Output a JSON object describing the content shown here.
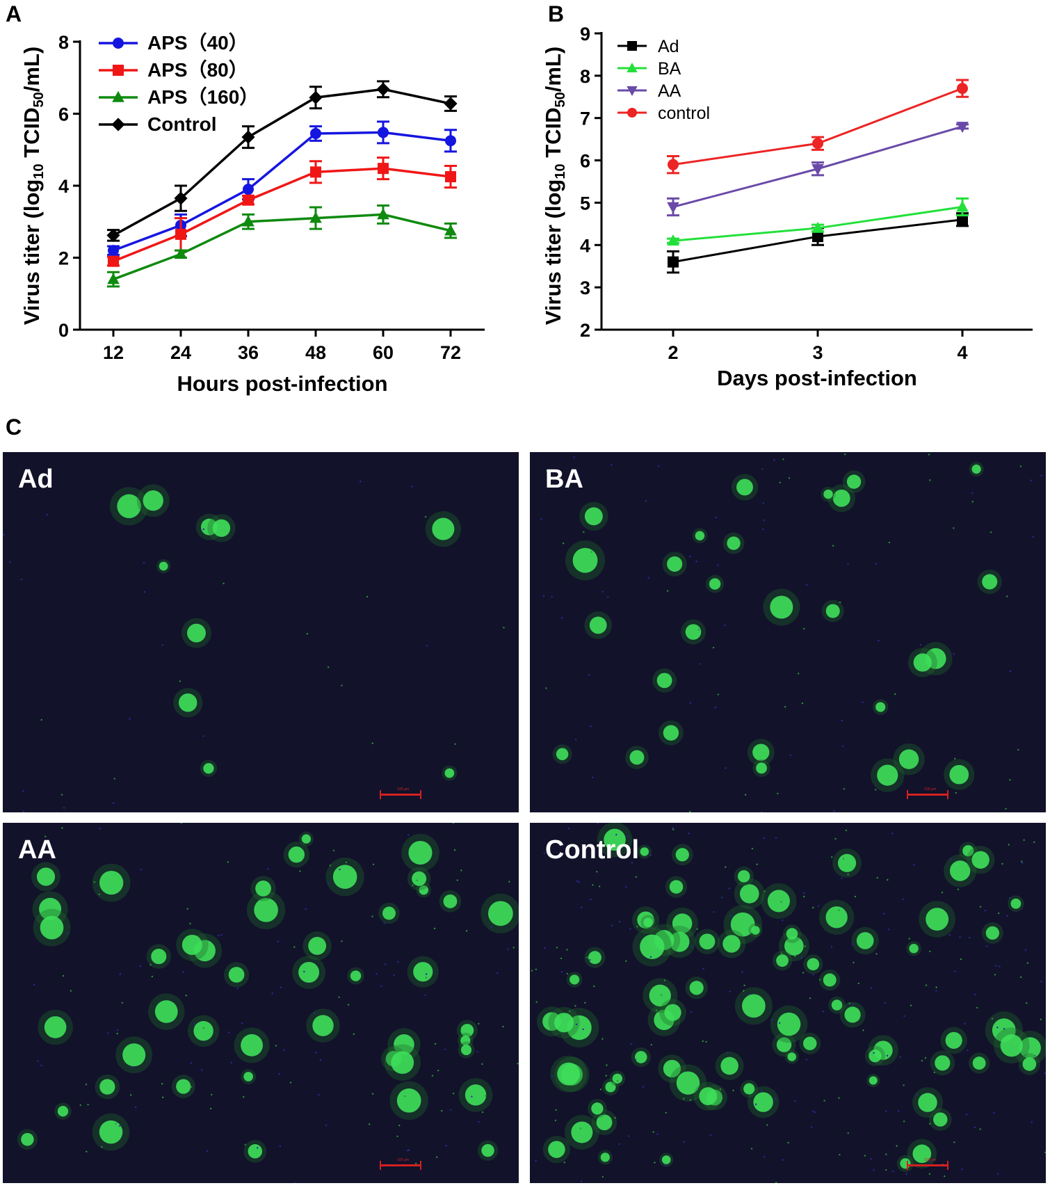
{
  "panels": {
    "a": "A",
    "b": "B",
    "c": "C"
  },
  "chart_data": [
    {
      "type": "line",
      "panel": "A",
      "xlabel": "Hours post-infection",
      "ylabel": "Virus titer (log10 TCID50/mL)",
      "x": [
        12,
        24,
        36,
        48,
        60,
        72
      ],
      "xticks": [
        "12",
        "24",
        "36",
        "48",
        "60",
        "72"
      ],
      "ylim": [
        0,
        8
      ],
      "yticks": [
        "0",
        "2",
        "4",
        "6",
        "8"
      ],
      "legend_position": "top-left",
      "series": [
        {
          "name": "APS（40）",
          "color": "#1515e0",
          "marker": "circle",
          "values": [
            2.2,
            2.9,
            3.9,
            5.45,
            5.48,
            5.25
          ],
          "errors": [
            0.12,
            0.3,
            0.28,
            0.2,
            0.3,
            0.3
          ]
        },
        {
          "name": "APS（80）",
          "color": "#f01616",
          "marker": "square",
          "values": [
            1.9,
            2.65,
            3.6,
            4.38,
            4.48,
            4.25
          ],
          "errors": [
            0.12,
            0.45,
            0.12,
            0.3,
            0.3,
            0.3
          ]
        },
        {
          "name": "APS（160）",
          "color": "#0f8a0f",
          "marker": "triangle",
          "values": [
            1.4,
            2.1,
            3.0,
            3.1,
            3.2,
            2.75
          ],
          "errors": [
            0.2,
            0.1,
            0.2,
            0.3,
            0.25,
            0.2
          ]
        },
        {
          "name": "Control",
          "color": "#000000",
          "marker": "diamond",
          "values": [
            2.62,
            3.65,
            5.35,
            6.45,
            6.68,
            6.28
          ],
          "errors": [
            0.15,
            0.35,
            0.3,
            0.3,
            0.22,
            0.2
          ]
        }
      ]
    },
    {
      "type": "line",
      "panel": "B",
      "xlabel": "Days post-infection",
      "ylabel": "Virus titer (log10 TCID50/mL)",
      "x": [
        2,
        3,
        4
      ],
      "xticks": [
        "2",
        "3",
        "4"
      ],
      "ylim": [
        2,
        9
      ],
      "yticks": [
        "2",
        "3",
        "4",
        "5",
        "6",
        "7",
        "8",
        "9"
      ],
      "legend_position": "top-left",
      "series": [
        {
          "name": "Ad",
          "color": "#000000",
          "marker": "square",
          "values": [
            3.6,
            4.2,
            4.6
          ],
          "errors": [
            0.25,
            0.2,
            0.15
          ]
        },
        {
          "name": "BA",
          "color": "#22e03a",
          "marker": "triangle",
          "values": [
            4.1,
            4.4,
            4.9
          ],
          "errors": [
            0.05,
            0.08,
            0.2
          ]
        },
        {
          "name": "AA",
          "color": "#6a4aa8",
          "marker": "triangle-down",
          "values": [
            4.9,
            5.8,
            6.8
          ],
          "errors": [
            0.2,
            0.15,
            0.05
          ]
        },
        {
          "name": "control",
          "color": "#ec2424",
          "marker": "circle",
          "values": [
            5.9,
            6.4,
            7.7
          ],
          "errors": [
            0.2,
            0.15,
            0.2
          ]
        }
      ]
    }
  ],
  "micrographs": [
    {
      "label": "Ad",
      "scale": "100 μm"
    },
    {
      "label": "BA",
      "scale": "100 μm"
    },
    {
      "label": "AA",
      "scale": "100 μm"
    },
    {
      "label": "Control",
      "scale": "100 μm"
    }
  ]
}
